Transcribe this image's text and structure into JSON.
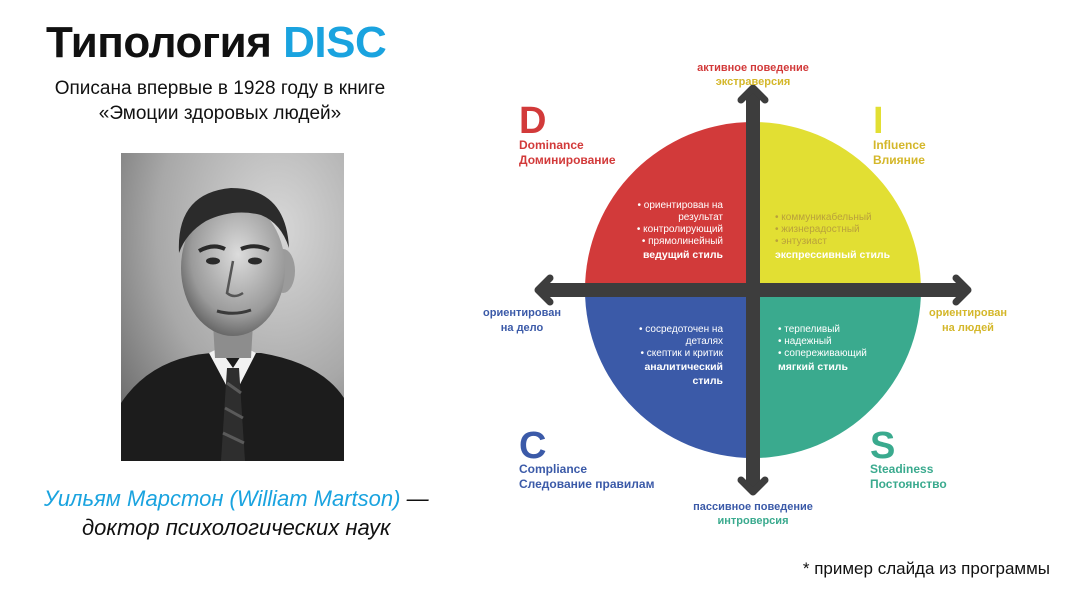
{
  "slide": {
    "title_main": "Типология",
    "title_accent": "DISC",
    "subtitle_line1": "Описана впервые в 1928 году в книге",
    "subtitle_line2": "«Эмоции здоровых людей»",
    "caption_name": "Уильям Марстон (William Martson)",
    "caption_dash": "—",
    "caption_role": "доктор психологических наук",
    "footnote": "* пример слайда из программы"
  },
  "disc": {
    "axes": {
      "top_line1": "активное поведение",
      "top_line2": "экстраверсия",
      "bottom_line1": "пассивное поведение",
      "bottom_line2": "интроверсия",
      "left_line1": "ориентирован",
      "left_line2": "на дело",
      "right_line1": "ориентирован",
      "right_line2": "на людей"
    },
    "quadrants": [
      {
        "letter": "D",
        "name_en": "Dominance",
        "name_ru": "Доминирование",
        "color": "#d23a3a",
        "traits": [
          "• ориентирован на",
          "результат",
          "• контролирующий",
          "• прямолинейный"
        ],
        "style": "ведущий стиль"
      },
      {
        "letter": "I",
        "name_en": "Influence",
        "name_ru": "Влияние",
        "color": "#e2df33",
        "text_color": "#d4b72a",
        "traits": [
          "• коммуникабельный",
          "• жизнерадостный",
          "• энтузиаст"
        ],
        "style": "экспрессивный стиль"
      },
      {
        "letter": "S",
        "name_en": "Steadiness",
        "name_ru": "Постоянство",
        "color": "#3aaa8e",
        "traits": [
          "• терпеливый",
          "• надежный",
          "• сопереживающий"
        ],
        "style": "мягкий стиль"
      },
      {
        "letter": "C",
        "name_en": "Compliance",
        "name_ru": "Следование правилам",
        "color": "#3b5aa8",
        "traits": [
          "• сосредоточен на",
          "деталях",
          "• скептик и критик"
        ],
        "style_line1": "аналитический",
        "style_line2": "стиль"
      }
    ]
  }
}
